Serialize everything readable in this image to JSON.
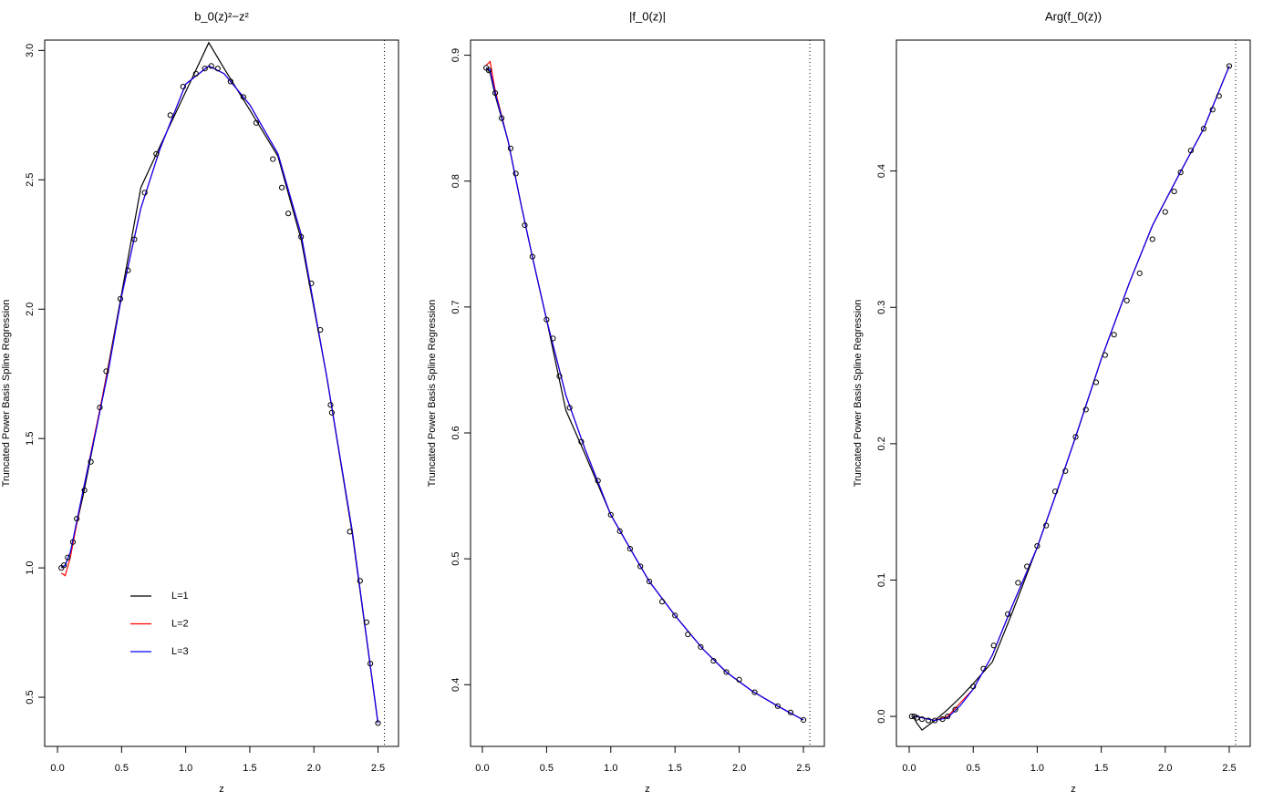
{
  "chart_data": [
    {
      "type": "line",
      "title": "b_0(z)²−z²",
      "xlabel": "z",
      "ylabel": "Truncated Power Basis Spline Regression",
      "xlim": [
        -0.1,
        2.66
      ],
      "ylim": [
        0.31,
        3.04
      ],
      "xticks": [
        {
          "value": 0,
          "label": "0.0"
        },
        0.5,
        {
          "value": 1,
          "label": "1.0"
        },
        1.5,
        {
          "value": 2,
          "label": "2.0"
        },
        2.5
      ],
      "yticks": [
        0.5,
        {
          "value": 1,
          "label": "1.0"
        },
        1.5,
        {
          "value": 2,
          "label": "2.0"
        },
        2.5,
        {
          "value": 3,
          "label": "3.0"
        }
      ],
      "vline": 2.55,
      "legend": "bottomleft",
      "x": [
        0.03,
        0.06,
        0.1,
        0.2,
        0.3,
        0.4,
        0.5,
        0.65,
        0.8,
        1.0,
        1.18,
        1.3,
        1.5,
        1.72,
        1.9,
        2.1,
        2.3,
        2.5
      ],
      "series": [
        {
          "name": "L=1",
          "color": "#000000",
          "values": [
            1.0,
            1.01,
            1.06,
            1.28,
            1.53,
            1.79,
            2.06,
            2.47,
            2.63,
            2.84,
            3.03,
            2.93,
            2.77,
            2.59,
            2.27,
            1.74,
            1.13,
            0.4
          ]
        },
        {
          "name": "L=2",
          "color": "#ff0000",
          "values": [
            0.98,
            0.97,
            1.04,
            1.3,
            1.54,
            1.78,
            2.05,
            2.39,
            2.62,
            2.87,
            2.94,
            2.91,
            2.79,
            2.6,
            2.29,
            1.74,
            1.14,
            0.4
          ]
        },
        {
          "name": "L=3",
          "color": "#0000ff",
          "values": [
            1.0,
            1.01,
            1.06,
            1.3,
            1.53,
            1.77,
            2.05,
            2.39,
            2.62,
            2.87,
            2.94,
            2.91,
            2.79,
            2.6,
            2.29,
            1.74,
            1.14,
            0.4
          ]
        }
      ],
      "points": {
        "color": "#000000",
        "x": [
          0.03,
          0.05,
          0.08,
          0.12,
          0.15,
          0.21,
          0.26,
          0.33,
          0.38,
          0.49,
          0.55,
          0.6,
          0.68,
          0.77,
          0.88,
          0.98,
          1.08,
          1.15,
          1.2,
          1.25,
          1.35,
          1.45,
          1.55,
          1.68,
          1.75,
          1.8,
          1.9,
          1.98,
          2.05,
          2.13,
          2.14,
          2.28,
          2.36,
          2.41,
          2.44,
          2.5
        ],
        "y": [
          1.0,
          1.01,
          1.04,
          1.1,
          1.19,
          1.3,
          1.41,
          1.62,
          1.76,
          2.04,
          2.15,
          2.27,
          2.45,
          2.6,
          2.75,
          2.86,
          2.91,
          2.93,
          2.94,
          2.93,
          2.88,
          2.82,
          2.72,
          2.58,
          2.47,
          2.37,
          2.28,
          2.1,
          1.92,
          1.63,
          1.6,
          1.14,
          0.95,
          0.79,
          0.63,
          0.4
        ]
      }
    },
    {
      "type": "line",
      "title": "|f_0(z)|",
      "xlabel": "z",
      "ylabel": "Truncated Power Basis Spline Regression",
      "xlim": [
        -0.092,
        2.663
      ],
      "ylim": [
        0.351,
        0.912
      ],
      "xticks": [
        {
          "value": 0,
          "label": "0.0"
        },
        0.5,
        {
          "value": 1,
          "label": "1.0"
        },
        1.5,
        {
          "value": 2,
          "label": "2.0"
        },
        2.5
      ],
      "yticks": [
        0.4,
        0.5,
        0.6,
        0.7,
        0.8,
        0.9
      ],
      "vline": 2.55,
      "x": [
        0.03,
        0.06,
        0.1,
        0.2,
        0.3,
        0.4,
        0.5,
        0.65,
        0.8,
        1.0,
        1.18,
        1.3,
        1.5,
        1.72,
        1.9,
        2.1,
        2.3,
        2.5
      ],
      "series": [
        {
          "color": "#000000",
          "values": [
            0.89,
            0.886,
            0.868,
            0.832,
            0.782,
            0.735,
            0.69,
            0.618,
            0.583,
            0.535,
            0.503,
            0.482,
            0.455,
            0.428,
            0.41,
            0.395,
            0.383,
            0.372
          ]
        },
        {
          "color": "#ff0000",
          "values": [
            0.892,
            0.895,
            0.872,
            0.832,
            0.782,
            0.735,
            0.69,
            0.63,
            0.587,
            0.535,
            0.503,
            0.482,
            0.455,
            0.428,
            0.41,
            0.395,
            0.383,
            0.372
          ]
        },
        {
          "color": "#0000ff",
          "values": [
            0.89,
            0.888,
            0.87,
            0.832,
            0.782,
            0.735,
            0.69,
            0.63,
            0.587,
            0.535,
            0.503,
            0.482,
            0.455,
            0.428,
            0.41,
            0.395,
            0.383,
            0.372
          ]
        }
      ],
      "points": {
        "color": "#000000",
        "x": [
          0.03,
          0.05,
          0.1,
          0.15,
          0.22,
          0.26,
          0.33,
          0.39,
          0.5,
          0.55,
          0.6,
          0.68,
          0.77,
          0.9,
          1.0,
          1.07,
          1.15,
          1.23,
          1.3,
          1.4,
          1.5,
          1.6,
          1.7,
          1.8,
          1.9,
          2.0,
          2.12,
          2.3,
          2.4,
          2.5
        ],
        "y": [
          0.89,
          0.888,
          0.87,
          0.85,
          0.826,
          0.806,
          0.765,
          0.74,
          0.69,
          0.675,
          0.645,
          0.62,
          0.593,
          0.562,
          0.535,
          0.522,
          0.508,
          0.494,
          0.482,
          0.466,
          0.455,
          0.44,
          0.43,
          0.419,
          0.41,
          0.404,
          0.394,
          0.383,
          0.378,
          0.372
        ]
      }
    },
    {
      "type": "line",
      "title": "Arg(f_0(z))",
      "xlabel": "z",
      "ylabel": "Truncated Power Basis Spline Regression",
      "xlim": [
        -0.1,
        2.664
      ],
      "ylim": [
        -0.022,
        0.496
      ],
      "xticks": [
        {
          "value": 0,
          "label": "0.0"
        },
        0.5,
        {
          "value": 1,
          "label": "1.0"
        },
        1.5,
        {
          "value": 2,
          "label": "2.0"
        },
        2.5
      ],
      "yticks": [
        {
          "value": 0,
          "label": "0.0"
        },
        0.1,
        0.2,
        0.3,
        0.4
      ],
      "vline": 2.55,
      "x": [
        0.03,
        0.06,
        0.1,
        0.2,
        0.3,
        0.4,
        0.5,
        0.65,
        0.8,
        1.0,
        1.18,
        1.3,
        1.5,
        1.72,
        1.9,
        2.1,
        2.3,
        2.5
      ],
      "series": [
        {
          "color": "#000000",
          "values": [
            0.0,
            -0.005,
            -0.01,
            -0.003,
            0.005,
            0.014,
            0.024,
            0.04,
            0.075,
            0.124,
            0.172,
            0.205,
            0.262,
            0.318,
            0.36,
            0.396,
            0.431,
            0.477
          ]
        },
        {
          "color": "#ff0000",
          "values": [
            0.0,
            0.0,
            -0.001,
            -0.003,
            0.0,
            0.01,
            0.02,
            0.045,
            0.08,
            0.124,
            0.172,
            0.205,
            0.262,
            0.318,
            0.36,
            0.396,
            0.431,
            0.477
          ]
        },
        {
          "color": "#0000ff",
          "values": [
            0.0,
            0.0,
            -0.001,
            -0.003,
            -0.001,
            0.008,
            0.02,
            0.045,
            0.08,
            0.124,
            0.172,
            0.205,
            0.262,
            0.318,
            0.36,
            0.396,
            0.431,
            0.477
          ]
        }
      ],
      "points": {
        "color": "#000000",
        "x": [
          0.02,
          0.04,
          0.06,
          0.1,
          0.15,
          0.2,
          0.26,
          0.3,
          0.36,
          0.5,
          0.58,
          0.66,
          0.77,
          0.85,
          0.92,
          1.0,
          1.07,
          1.14,
          1.22,
          1.3,
          1.38,
          1.46,
          1.53,
          1.6,
          1.7,
          1.8,
          1.9,
          2.0,
          2.07,
          2.12,
          2.2,
          2.3,
          2.37,
          2.42,
          2.5
        ],
        "y": [
          0.0,
          0.0,
          -0.001,
          -0.002,
          -0.003,
          -0.003,
          -0.002,
          0.0,
          0.005,
          0.022,
          0.035,
          0.052,
          0.075,
          0.098,
          0.11,
          0.125,
          0.14,
          0.165,
          0.18,
          0.205,
          0.225,
          0.245,
          0.265,
          0.28,
          0.305,
          0.325,
          0.35,
          0.37,
          0.385,
          0.399,
          0.415,
          0.431,
          0.445,
          0.455,
          0.477
        ]
      }
    }
  ]
}
